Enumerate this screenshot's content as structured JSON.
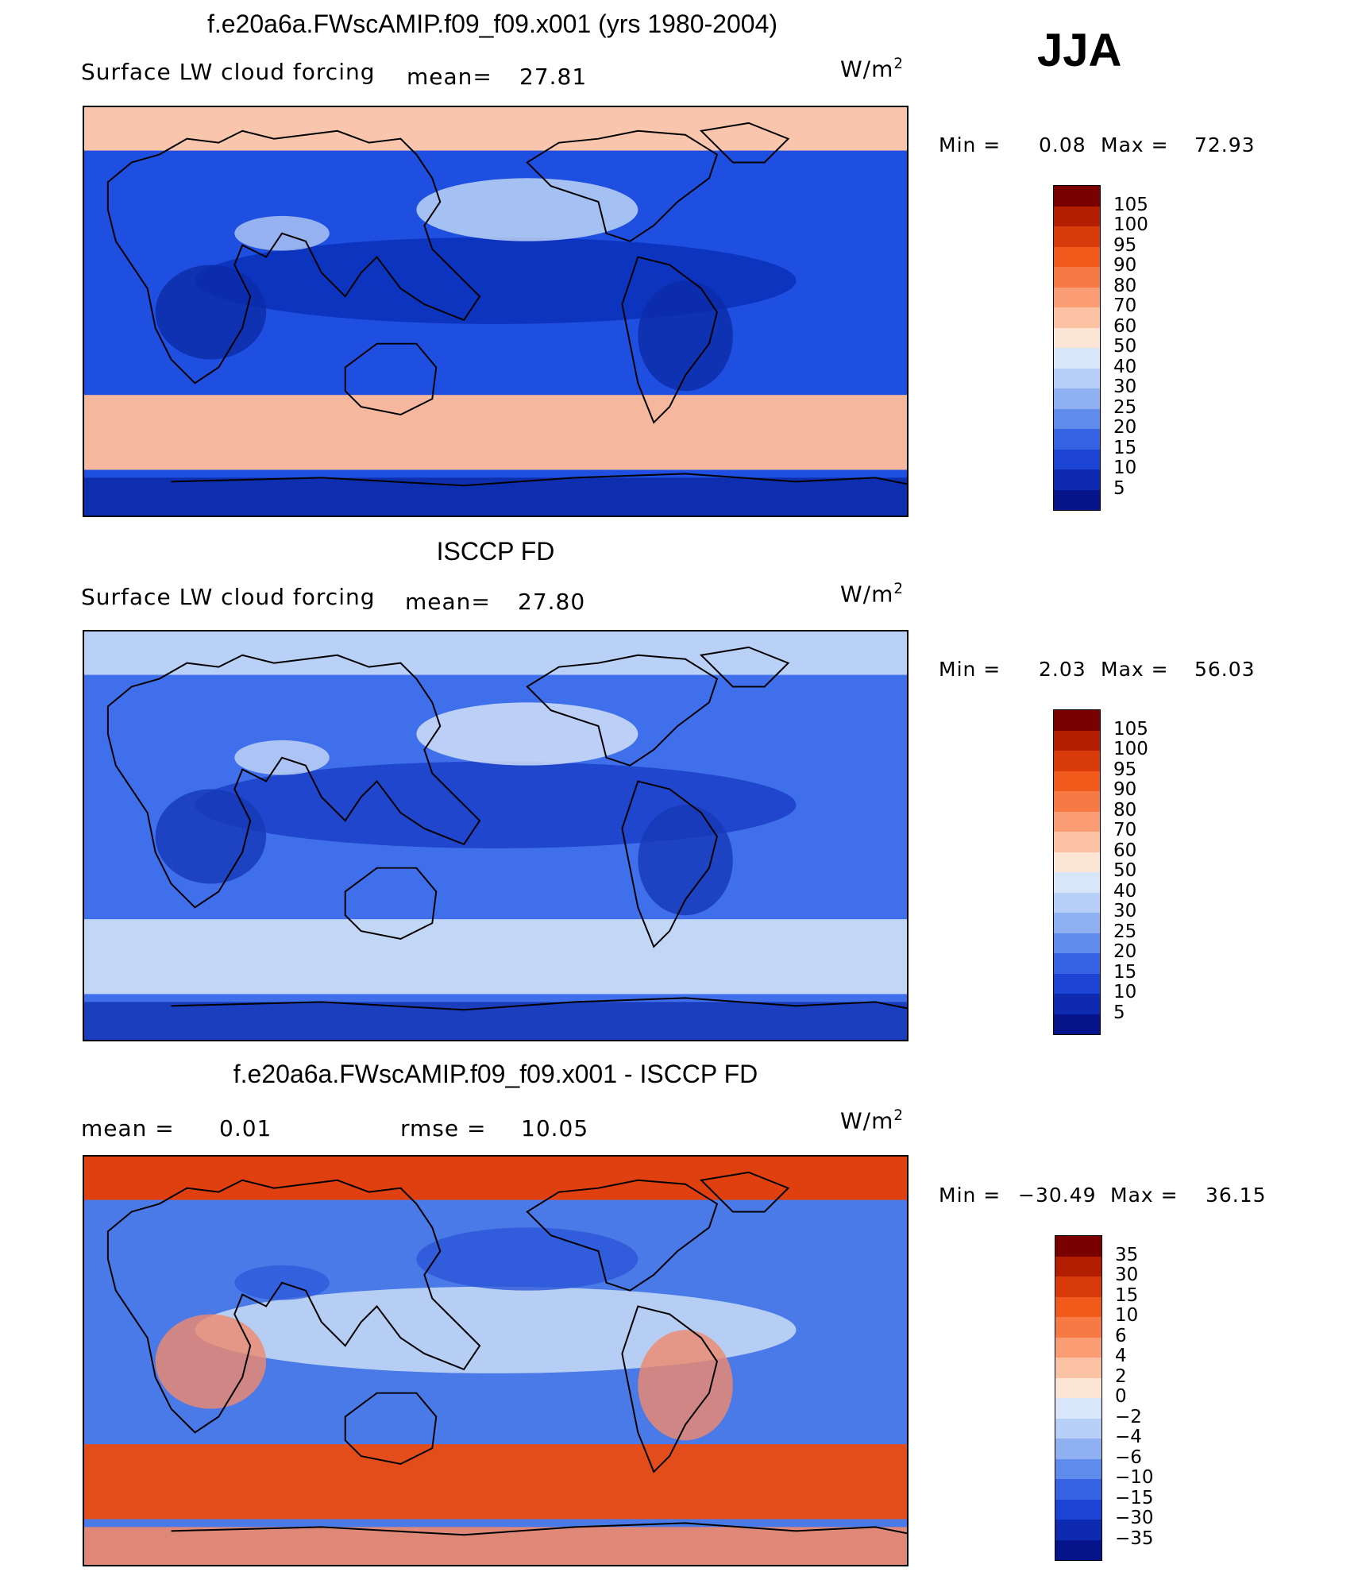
{
  "season": "JJA",
  "units_base": "W/m",
  "units_sup": "2",
  "panels": [
    {
      "title": "f.e20a6a.FWscAMIP.f09_f09.x001 (yrs 1980-2004)",
      "variable": "Surface LW cloud forcing",
      "mean_label": "mean=",
      "mean_value": "27.81",
      "min_label": "Min  =",
      "min_value": "0.08",
      "max_label": "Max  =",
      "max_value": "72.93",
      "levels": [
        "105",
        "100",
        "95",
        "90",
        "80",
        "70",
        "60",
        "50",
        "40",
        "30",
        "25",
        "20",
        "15",
        "10",
        "5"
      ],
      "colors": {
        "ocean": "#1e4fe0",
        "polar": "#f9c6ad",
        "south": "#f5b89e",
        "tropic": "#0a2fb8",
        "land": "#0b2aa8",
        "accent": "#c7dcf6"
      }
    },
    {
      "title": "ISCCP FD",
      "variable": "Surface LW cloud forcing",
      "mean_label": "mean=",
      "mean_value": "27.80",
      "min_label": "Min  =",
      "min_value": "2.03",
      "max_label": "Max  =",
      "max_value": "56.03",
      "levels": [
        "105",
        "100",
        "95",
        "90",
        "80",
        "70",
        "60",
        "50",
        "40",
        "30",
        "25",
        "20",
        "15",
        "10",
        "5"
      ],
      "colors": {
        "ocean": "#3f6fea",
        "polar": "#b9d0f7",
        "south": "#c2d6f6",
        "tropic": "#1a40c8",
        "land": "#1638b8",
        "accent": "#dbe7fa"
      }
    },
    {
      "title": "f.e20a6a.FWscAMIP.f09_f09.x001 - ISCCP FD",
      "mean_label": "mean  =",
      "mean_value": "0.01",
      "rmse_label": "rmse  =",
      "rmse_value": "10.05",
      "min_label": "Min  =",
      "min_value": "−30.49",
      "max_label": "Max  =",
      "max_value": "36.15",
      "levels": [
        "35",
        "30",
        "15",
        "10",
        "6",
        "4",
        "2",
        "0",
        "−2",
        "−4",
        "−6",
        "−10",
        "−15",
        "−30",
        "−35"
      ],
      "colors": {
        "ocean": "#4a7ae8",
        "polar": "#e0400f",
        "south": "#e34d1c",
        "tropic": "#c9dcf6",
        "land": "#f08a6a",
        "accent": "#2a55d8"
      }
    }
  ],
  "colorbar_colors": [
    "#7a0000",
    "#b31e00",
    "#d93a0a",
    "#f25a1c",
    "#f77a45",
    "#fa9d75",
    "#fbc2a4",
    "#fde5d6",
    "#d9e6fa",
    "#b8cff7",
    "#8fb1f2",
    "#5f8cec",
    "#3563e3",
    "#1b43d4",
    "#0d2ab0",
    "#05148a"
  ]
}
